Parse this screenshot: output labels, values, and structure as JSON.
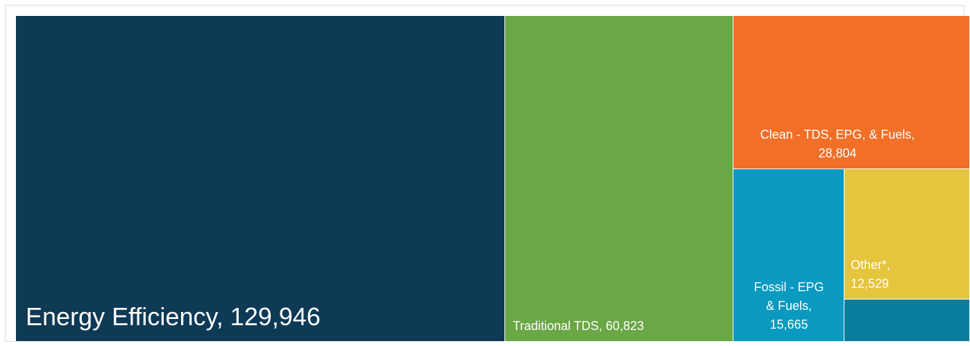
{
  "chart_data": {
    "type": "treemap",
    "items": [
      {
        "name": "Energy Efficiency",
        "value": 129946,
        "label": "Energy Efficiency, 129,946",
        "color": "#0e3a56"
      },
      {
        "name": "Traditional TDS",
        "value": 60823,
        "label": "Traditional TDS, 60,823",
        "color": "#6aa745"
      },
      {
        "name": "Clean - TDS, EPG, & Fuels",
        "value": 28804,
        "label_line1": "Clean - TDS, EPG, & Fuels,",
        "label_line2": "28,804",
        "color": "#f26f28"
      },
      {
        "name": "Fossil - EPG & Fuels",
        "value": 15665,
        "label_line1": "Fossil - EPG",
        "label_line2": "& Fuels,",
        "label_line3": "15,665",
        "color": "#0a99bf"
      },
      {
        "name": "Other*",
        "value": 12529,
        "label_line1": "Other*,",
        "label_line2": "12,529",
        "color": "#e5c43e"
      },
      {
        "name": "",
        "value": null,
        "color": "#0a7d9d"
      }
    ]
  }
}
